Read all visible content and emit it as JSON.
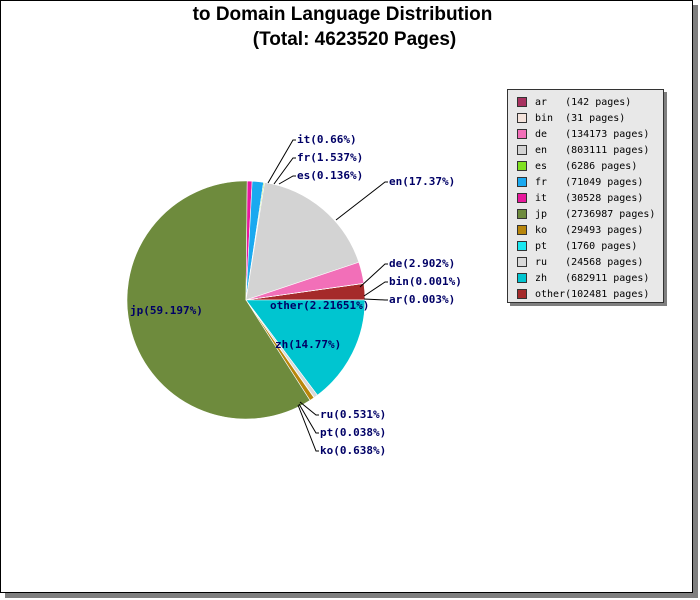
{
  "chart_data": {
    "type": "pie",
    "title": "to Domain Language Distribution",
    "subtitle": "(Total: 4623520 Pages)",
    "legend_position": "right",
    "slices": [
      {
        "key": "ar",
        "pages": 142,
        "legend": "ar   (142 pages)",
        "label": "ar(0.003%)",
        "color": "#a83260"
      },
      {
        "key": "bin",
        "pages": 31,
        "legend": "bin  (31 pages)",
        "label": "bin(0.001%)",
        "color": "#f5e4dc"
      },
      {
        "key": "de",
        "pages": 134173,
        "legend": "de   (134173 pages)",
        "label": "de(2.902%)",
        "color": "#f26fb8"
      },
      {
        "key": "en",
        "pages": 803111,
        "legend": "en   (803111 pages)",
        "label": "en(17.37%)",
        "color": "#d3d3d3"
      },
      {
        "key": "es",
        "pages": 6286,
        "legend": "es   (6286 pages)",
        "label": "es(0.136%)",
        "color": "#7fe020"
      },
      {
        "key": "fr",
        "pages": 71049,
        "legend": "fr   (71049 pages)",
        "label": "fr(1.537%)",
        "color": "#1aa9f0"
      },
      {
        "key": "it",
        "pages": 30528,
        "legend": "it   (30528 pages)",
        "label": "it(0.66%)",
        "color": "#e8189c"
      },
      {
        "key": "jp",
        "pages": 2736987,
        "legend": "jp   (2736987 pages)",
        "label": "jp(59.197%)",
        "color": "#6e8b3d"
      },
      {
        "key": "ko",
        "pages": 29493,
        "legend": "ko   (29493 pages)",
        "label": "ko(0.638%)",
        "color": "#b8860b"
      },
      {
        "key": "pt",
        "pages": 1760,
        "legend": "pt   (1760 pages)",
        "label": "pt(0.038%)",
        "color": "#1ae8f0"
      },
      {
        "key": "ru",
        "pages": 24568,
        "legend": "ru   (24568 pages)",
        "label": "ru(0.531%)",
        "color": "#d9d9d9"
      },
      {
        "key": "zh",
        "pages": 682911,
        "legend": "zh   (682911 pages)",
        "label": "zh(14.77%)",
        "color": "#00c5d0"
      },
      {
        "key": "other",
        "pages": 102481,
        "legend": "other(102481 pages)",
        "label": "other(2.21651%)",
        "color": "#a52a2a"
      }
    ]
  }
}
